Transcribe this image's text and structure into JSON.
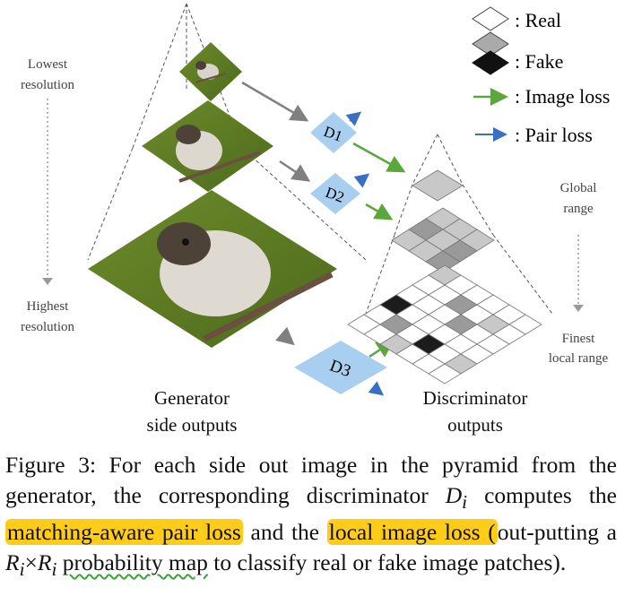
{
  "figure": {
    "left_labels": {
      "lowest": [
        "Lowest",
        "resolution"
      ],
      "highest": [
        "Highest",
        "resolution"
      ]
    },
    "right_labels": {
      "global": [
        "Global",
        "range"
      ],
      "finest": [
        "Finest",
        "local range"
      ]
    },
    "bottom_labels": {
      "generator": [
        "Generator",
        "side outputs"
      ],
      "discriminator": [
        "Discriminator",
        "outputs"
      ]
    },
    "discriminators": [
      "D1",
      "D2",
      "D3"
    ],
    "legend": [
      {
        "symbol": "real-patch",
        "label": ": Real"
      },
      {
        "symbol": "fake-patch",
        "label": ": Fake"
      },
      {
        "symbol": "green-arrow",
        "label": ": Image loss"
      },
      {
        "symbol": "blue-arrow",
        "label": ": Pair loss"
      }
    ],
    "colors": {
      "image_loss": "#5aa83c",
      "pair_loss": "#3a6fc4",
      "discriminator_fill": "#a9cff0",
      "highlight": "#ffcc1a"
    }
  },
  "caption": {
    "label": "Figure 3:",
    "t1": " For each side out image in the pyramid from the generator, the corresponding discriminator ",
    "di": "D",
    "di_sub": "i",
    "t2": " computes the ",
    "hl1": "matching-aware pair loss",
    "t3": " and the ",
    "hl2": "local image loss (",
    "t4": "out-putting a ",
    "ri": "R",
    "ri_sub": "i",
    "times": "×",
    "ri2": "R",
    "ri2_sub": "i",
    "sp": " ",
    "squig": "probability map",
    "t5": " to classify real or fake image patches)."
  }
}
